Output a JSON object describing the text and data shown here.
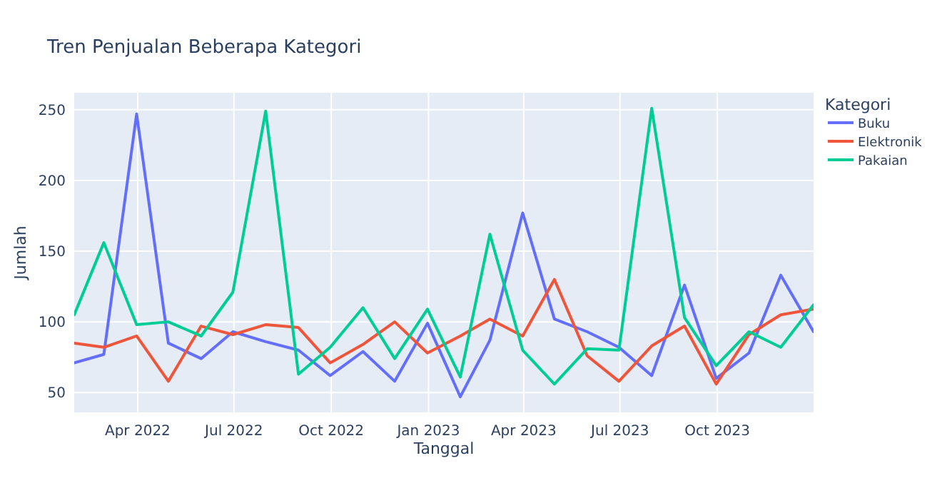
{
  "chart_data": {
    "type": "line",
    "title": "Tren Penjualan Beberapa Kategori",
    "xlabel": "Tanggal",
    "ylabel": "Jumlah",
    "legend_title": "Kategori",
    "legend": "right",
    "grid": true,
    "x": [
      "2022-01-31",
      "2022-02-28",
      "2022-03-31",
      "2022-04-30",
      "2022-05-31",
      "2022-06-30",
      "2022-07-31",
      "2022-08-31",
      "2022-09-30",
      "2022-10-31",
      "2022-11-30",
      "2022-12-31",
      "2023-01-31",
      "2023-02-28",
      "2023-03-31",
      "2023-04-30",
      "2023-05-31",
      "2023-06-30",
      "2023-07-31",
      "2023-08-31",
      "2023-09-30",
      "2023-10-31",
      "2023-11-30",
      "2023-12-31"
    ],
    "xlim": [
      "2022-01-31",
      "2023-12-31"
    ],
    "xticks": [
      {
        "value": "2022-04-01",
        "label": "Apr 2022"
      },
      {
        "value": "2022-07-01",
        "label": "Jul 2022"
      },
      {
        "value": "2022-10-01",
        "label": "Oct 2022"
      },
      {
        "value": "2023-01-01",
        "label": "Jan 2023"
      },
      {
        "value": "2023-04-01",
        "label": "Apr 2023"
      },
      {
        "value": "2023-07-01",
        "label": "Jul 2023"
      },
      {
        "value": "2023-10-01",
        "label": "Oct 2023"
      }
    ],
    "ylim": [
      36,
      262
    ],
    "yticks": [
      50,
      100,
      150,
      200,
      250
    ],
    "series": [
      {
        "name": "Buku",
        "color": "#636efa",
        "values": [
          71,
          77,
          247,
          85,
          74,
          93,
          86,
          80,
          62,
          79,
          58,
          99,
          47,
          87,
          177,
          102,
          93,
          82,
          62,
          126,
          60,
          78,
          133,
          93
        ]
      },
      {
        "name": "Elektronik",
        "color": "#ef553b",
        "values": [
          85,
          82,
          90,
          58,
          97,
          91,
          98,
          96,
          71,
          84,
          100,
          78,
          90,
          102,
          90,
          130,
          76,
          58,
          83,
          97,
          56,
          91,
          105,
          109
        ]
      },
      {
        "name": "Pakaian",
        "color": "#00cc96",
        "values": [
          105,
          156,
          98,
          100,
          90,
          121,
          249,
          63,
          82,
          110,
          74,
          109,
          61,
          162,
          80,
          56,
          81,
          80,
          251,
          103,
          69,
          93,
          82,
          112
        ]
      }
    ]
  }
}
